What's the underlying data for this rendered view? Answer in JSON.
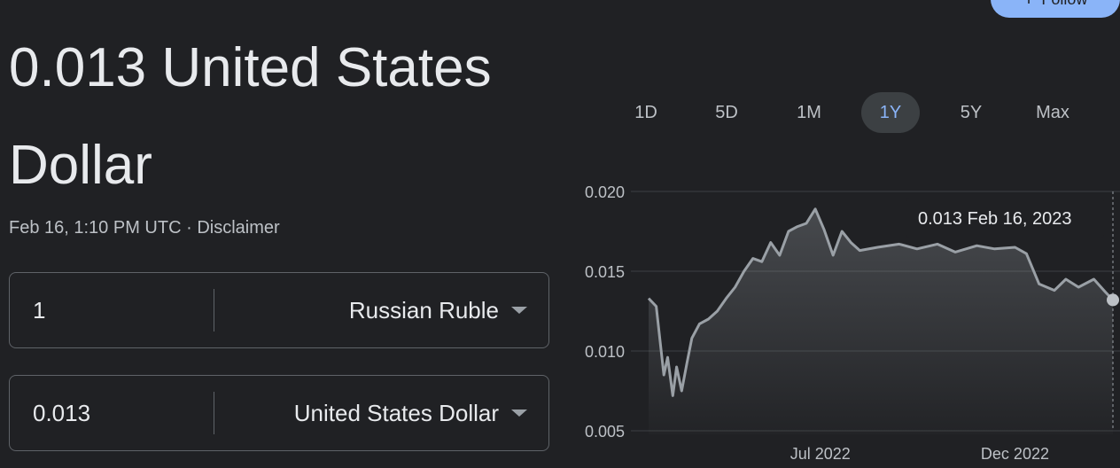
{
  "header": {
    "follow_label": "Follow"
  },
  "summary": {
    "value_text": "0.013 United States Dollar",
    "timestamp": "Feb 16, 1:10 PM UTC",
    "separator": " · ",
    "disclaimer": "Disclaimer"
  },
  "converter": {
    "from": {
      "amount": "1",
      "currency": "Russian Ruble"
    },
    "to": {
      "amount": "0.013",
      "currency": "United States Dollar"
    }
  },
  "ranges": [
    "1D",
    "5D",
    "1M",
    "1Y",
    "5Y",
    "Max"
  ],
  "active_range": "1Y",
  "colors": {
    "background": "#202124",
    "accent": "#8ab4f8",
    "line": "#9aa0a6"
  },
  "chart_data": {
    "type": "area",
    "ylim": [
      0.005,
      0.02
    ],
    "y_ticks": [
      "0.020",
      "0.015",
      "0.010",
      "0.005"
    ],
    "y_tick_values": [
      0.02,
      0.015,
      0.01,
      0.005
    ],
    "x_ticks": [
      "Jul 2022",
      "Dec 2022"
    ],
    "x_tick_dates": [
      "2022-07-01",
      "2022-12-01"
    ],
    "tooltip": {
      "value": "0.013",
      "date": "Feb 16, 2023"
    },
    "grid": true,
    "series": [
      {
        "x": [
          "2022-02-16",
          "2022-02-22",
          "2022-02-28",
          "2022-03-03",
          "2022-03-07",
          "2022-03-10",
          "2022-03-14",
          "2022-03-18",
          "2022-03-22",
          "2022-03-28",
          "2022-04-04",
          "2022-04-11",
          "2022-04-18",
          "2022-04-25",
          "2022-05-02",
          "2022-05-09",
          "2022-05-16",
          "2022-05-23",
          "2022-05-30",
          "2022-06-06",
          "2022-06-13",
          "2022-06-20",
          "2022-06-27",
          "2022-07-04",
          "2022-07-11",
          "2022-07-18",
          "2022-07-25",
          "2022-08-01",
          "2022-08-15",
          "2022-09-01",
          "2022-09-15",
          "2022-10-01",
          "2022-10-15",
          "2022-11-01",
          "2022-11-15",
          "2022-12-01",
          "2022-12-10",
          "2022-12-20",
          "2023-01-01",
          "2023-01-10",
          "2023-01-20",
          "2023-02-01",
          "2023-02-10",
          "2023-02-16"
        ],
        "values": [
          0.0133,
          0.0128,
          0.0085,
          0.0096,
          0.0072,
          0.009,
          0.0075,
          0.0092,
          0.0108,
          0.0117,
          0.012,
          0.0125,
          0.0133,
          0.014,
          0.015,
          0.0158,
          0.0156,
          0.0168,
          0.016,
          0.0175,
          0.0178,
          0.018,
          0.0189,
          0.0176,
          0.016,
          0.0175,
          0.0168,
          0.0163,
          0.0165,
          0.0167,
          0.0164,
          0.0167,
          0.0162,
          0.0166,
          0.0164,
          0.0165,
          0.0161,
          0.0142,
          0.0138,
          0.0145,
          0.014,
          0.0145,
          0.0137,
          0.0132
        ]
      }
    ]
  }
}
